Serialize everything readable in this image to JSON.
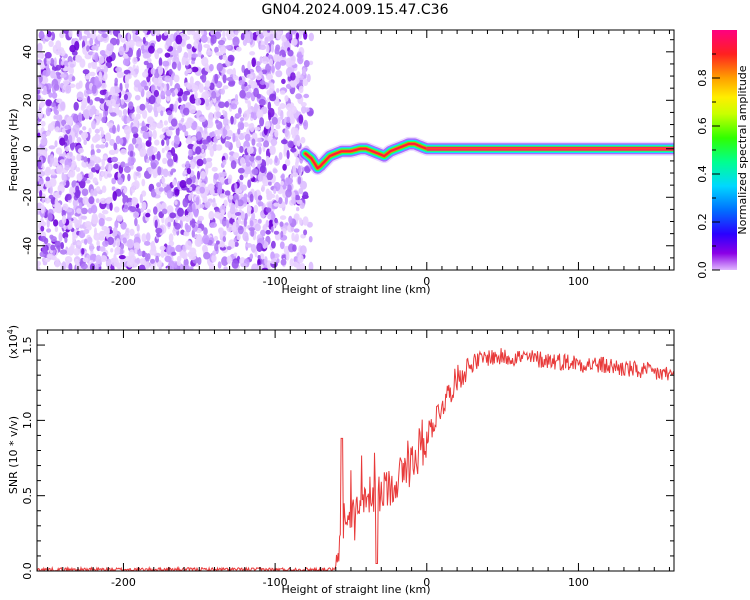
{
  "title": "GN04.2024.009.15.47.C36",
  "chart_data": [
    {
      "type": "heatmap",
      "xlabel": "Height of straight line (km)",
      "ylabel": "Frequency (Hz)",
      "xlim": [
        -257,
        163
      ],
      "ylim": [
        -50,
        49
      ],
      "xticks": [
        -200,
        -100,
        0,
        100
      ],
      "yticks": [
        -40,
        -20,
        0,
        20,
        40
      ],
      "colorbar": {
        "label": "Normalized spectral amplitude",
        "range": [
          0,
          1
        ],
        "ticks": [
          "0.0",
          "0.2",
          "0.4",
          "0.6",
          "0.8"
        ],
        "tick_values": [
          0,
          0.2,
          0.4,
          0.6,
          0.8
        ]
      },
      "noise_region_x": [
        -257,
        -80
      ],
      "signal_track": {
        "x": [
          -80,
          -76,
          -72,
          -70,
          -67,
          -64,
          -60,
          -56,
          -50,
          -44,
          -40,
          -36,
          -32,
          -28,
          -24,
          -20,
          -16,
          -12,
          -8,
          -4,
          0,
          50,
          100,
          163
        ],
        "y": [
          -2,
          -4,
          -8,
          -7,
          -5,
          -3,
          -2,
          -1,
          -1,
          0,
          0,
          -1,
          -2,
          -3,
          -1,
          0,
          1,
          2,
          2,
          1,
          0,
          0,
          0,
          0
        ]
      }
    },
    {
      "type": "line",
      "xlabel": "Height of straight line (km)",
      "ylabel": "SNR (10 * v/v)",
      "multiplier": "(x10",
      "multiplier_exp": "4",
      "multiplier_close": ")",
      "xlim": [
        -257,
        163
      ],
      "ylim": [
        0,
        1.6
      ],
      "xticks": [
        -200,
        -100,
        0,
        100
      ],
      "yticks": [
        "0.0",
        "0.5",
        "1.0",
        "1.5"
      ],
      "ytick_values": [
        0,
        0.5,
        1.0,
        1.5
      ],
      "color": "#e83a3a",
      "trend": {
        "x": [
          -257,
          -60,
          -56,
          -50,
          -40,
          -30,
          -20,
          -10,
          0,
          10,
          20,
          30,
          40,
          60,
          80,
          100,
          120,
          140,
          163
        ],
        "y": [
          0.01,
          0.01,
          0.25,
          0.38,
          0.45,
          0.52,
          0.6,
          0.72,
          0.9,
          1.1,
          1.28,
          1.38,
          1.42,
          1.42,
          1.4,
          1.38,
          1.36,
          1.33,
          1.3
        ]
      }
    }
  ]
}
